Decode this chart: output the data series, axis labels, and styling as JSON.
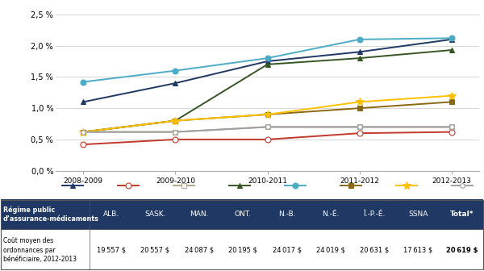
{
  "years": [
    "2008-2009",
    "2009-2010",
    "2010-2011",
    "2011-2012",
    "2012-2013"
  ],
  "series": [
    {
      "label": "ALB.",
      "color": "#1F3864",
      "marker": "^",
      "markerfacecolor": "#1F3864",
      "markersize": 5,
      "linewidth": 1.4,
      "values": [
        1.1,
        1.4,
        1.75,
        1.9,
        2.1
      ]
    },
    {
      "label": "SASK.",
      "color": "#C0392B",
      "marker": "o",
      "markerfacecolor": "white",
      "markersize": 5,
      "linewidth": 1.4,
      "values": [
        0.42,
        0.5,
        0.5,
        0.6,
        0.62
      ]
    },
    {
      "label": "MAN.",
      "color": "#B8A98A",
      "marker": "s",
      "markerfacecolor": "white",
      "markersize": 4,
      "linewidth": 1.4,
      "values": [
        0.62,
        0.62,
        0.7,
        0.7,
        0.7
      ]
    },
    {
      "label": "ONT.",
      "color": "#375623",
      "marker": "^",
      "markerfacecolor": "#375623",
      "markersize": 5,
      "linewidth": 1.4,
      "values": [
        0.62,
        0.8,
        1.7,
        1.8,
        1.93
      ]
    },
    {
      "label": "N.-B.",
      "color": "#4BACC6",
      "marker": "o",
      "markerfacecolor": "#4BACC6",
      "markersize": 5,
      "linewidth": 1.4,
      "values": [
        1.42,
        1.6,
        1.8,
        2.1,
        2.12
      ]
    },
    {
      "label": "N.-É.",
      "color": "#8B6914",
      "marker": "s",
      "markerfacecolor": "#8B6914",
      "markersize": 4,
      "linewidth": 1.4,
      "values": [
        0.62,
        0.8,
        0.9,
        1.0,
        1.1
      ]
    },
    {
      "label": "Î.-P.-É.",
      "color": "#FFC000",
      "marker": "*",
      "markerfacecolor": "#FFC000",
      "markersize": 7,
      "linewidth": 1.4,
      "values": [
        0.62,
        0.8,
        0.9,
        1.1,
        1.2
      ]
    },
    {
      "label": "SSNA",
      "color": "#A0A0A0",
      "marker": "o",
      "markerfacecolor": "white",
      "markersize": 4,
      "linewidth": 1.4,
      "values": [
        0.62,
        0.62,
        0.7,
        0.7,
        0.7
      ]
    }
  ],
  "ylim": [
    0.0,
    2.6
  ],
  "yticks": [
    0.0,
    0.5,
    1.0,
    1.5,
    2.0,
    2.5
  ],
  "ytick_labels": [
    "0,0 %",
    "0,5 %",
    "1,0 %",
    "1,5 %",
    "2,0 %",
    "2,5 %"
  ],
  "table_header_bg": "#1F3864",
  "table_row1_label": "Régime public\nd’assurance-médicaments",
  "table_row2_label": "Coût moyen des\nordonnances par\nbénéficiaire, 2012-2013",
  "table_columns": [
    "ALB.",
    "SASK.",
    "MAN.",
    "ONT.",
    "N.-B.",
    "N.-É.",
    "Î.-P.-É.",
    "SSNA",
    "Total*"
  ],
  "table_costs": [
    "19 557 $",
    "20 557 $",
    "24 087 $",
    "20 195 $",
    "24 017 $",
    "24 019 $",
    "20 631 $",
    "17 613 $",
    "20 619 $"
  ]
}
